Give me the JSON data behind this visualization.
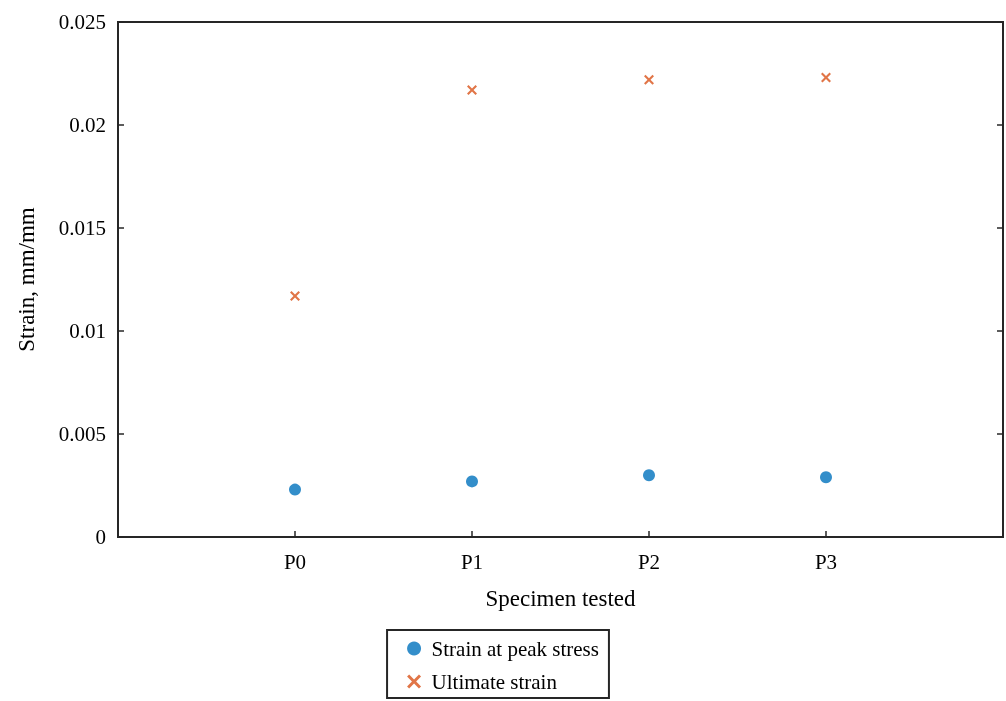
{
  "chart_data": {
    "type": "scatter",
    "xlabel": "Specimen tested",
    "ylabel": "Strain, mm/mm",
    "categories": [
      "P0",
      "P1",
      "P2",
      "P3"
    ],
    "series": [
      {
        "name": "Strain at peak stress",
        "color": "#0072bd",
        "marker": "circle",
        "values": [
          0.0023,
          0.0027,
          0.003,
          0.0029
        ]
      },
      {
        "name": "Ultimate strain",
        "color": "#d95319",
        "marker": "cross",
        "values": [
          0.0117,
          0.0217,
          0.0222,
          0.0223
        ]
      }
    ],
    "ylim": [
      0,
      0.025
    ],
    "yticks": [
      0,
      0.005,
      0.01,
      0.015,
      0.02,
      0.025
    ],
    "grid": false,
    "legend": "bottom"
  }
}
